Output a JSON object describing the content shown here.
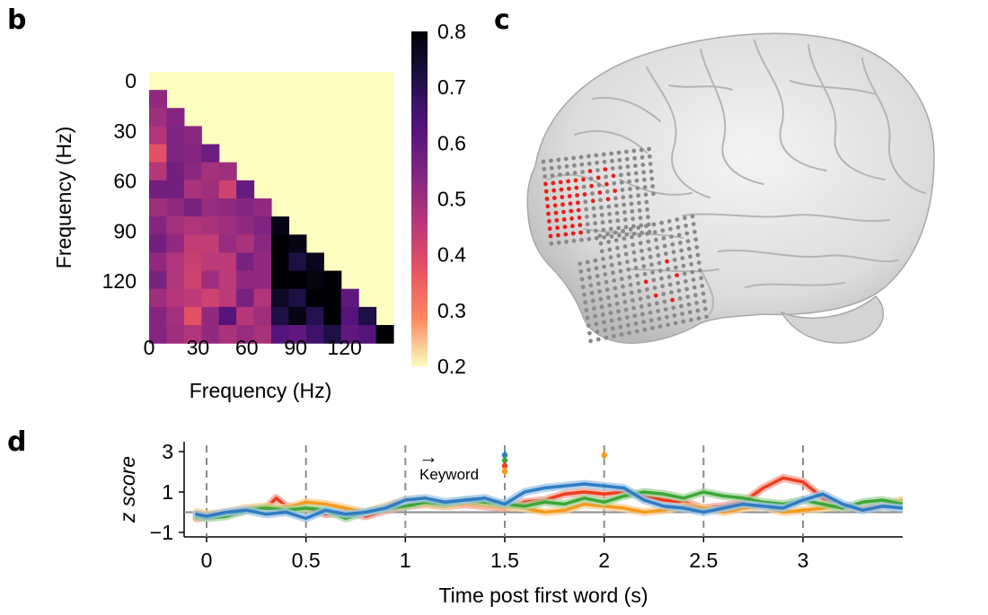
{
  "panels": {
    "b": {
      "letter": "b"
    },
    "c": {
      "letter": "c"
    },
    "d": {
      "letter": "d"
    }
  },
  "chart_data": [
    {
      "panel": "b",
      "type": "heatmap",
      "title": "",
      "xlabel": "Frequency (Hz)",
      "ylabel": "Frequency (Hz)",
      "x_ticks": [
        "0",
        "30",
        "60",
        "90",
        "120"
      ],
      "y_ticks": [
        "0",
        "30",
        "60",
        "90",
        "120"
      ],
      "xlim": [
        0,
        150
      ],
      "ylim": [
        0,
        150
      ],
      "bin_hz": 10,
      "colorbar": {
        "ticks": [
          "0.8",
          "0.7",
          "0.6",
          "0.5",
          "0.4",
          "0.3",
          "0.2"
        ],
        "range": [
          0.2,
          0.8
        ],
        "colormap": "magma_r"
      },
      "values": [
        [
          0.52
        ],
        [
          0.5,
          0.54
        ],
        [
          0.47,
          0.55,
          0.53
        ],
        [
          0.38,
          0.55,
          0.54,
          0.58
        ],
        [
          0.46,
          0.57,
          0.53,
          0.49,
          0.5
        ],
        [
          0.57,
          0.57,
          0.48,
          0.5,
          0.42,
          0.59
        ],
        [
          0.5,
          0.52,
          0.56,
          0.51,
          0.52,
          0.54,
          0.52
        ],
        [
          0.54,
          0.49,
          0.47,
          0.48,
          0.5,
          0.52,
          0.55,
          0.78
        ],
        [
          0.57,
          0.52,
          0.44,
          0.44,
          0.51,
          0.48,
          0.53,
          0.8,
          0.78
        ],
        [
          0.52,
          0.47,
          0.43,
          0.45,
          0.45,
          0.56,
          0.52,
          0.8,
          0.72,
          0.77
        ],
        [
          0.56,
          0.47,
          0.42,
          0.5,
          0.45,
          0.52,
          0.52,
          0.82,
          0.8,
          0.78,
          0.82
        ],
        [
          0.5,
          0.46,
          0.45,
          0.42,
          0.45,
          0.56,
          0.47,
          0.76,
          0.72,
          0.8,
          0.82,
          0.6
        ],
        [
          0.54,
          0.49,
          0.38,
          0.52,
          0.62,
          0.46,
          0.5,
          0.72,
          0.78,
          0.7,
          0.82,
          0.62,
          0.72
        ],
        [
          0.54,
          0.5,
          0.47,
          0.52,
          0.48,
          0.51,
          0.48,
          0.62,
          0.6,
          0.66,
          0.72,
          0.6,
          0.62,
          0.8
        ]
      ],
      "above_diagonal_value": 0.2
    },
    {
      "panel": "c",
      "type": "electrode-map",
      "electrodes": "grey = recorded, red = selected"
    },
    {
      "panel": "d",
      "type": "line",
      "title": "",
      "xlabel": "Time post first word (s)",
      "ylabel": "z score",
      "x_ticks": [
        "0",
        "0.5",
        "1",
        "1.5",
        "2",
        "2.5",
        "3"
      ],
      "y_ticks": [
        "3",
        "1",
        "−1"
      ],
      "xlim": [
        -0.1,
        3.5
      ],
      "ylim": [
        -1,
        3
      ],
      "vlines": [
        0,
        0.5,
        1,
        1.5,
        2,
        2.5,
        3
      ],
      "baseline": 0,
      "annotation": {
        "text": "Keyword",
        "arrow": "→"
      },
      "series": [
        {
          "color": "#f03c1e",
          "band": "#f6a294",
          "x": [
            -0.05,
            0,
            0.1,
            0.2,
            0.3,
            0.35,
            0.4,
            0.5,
            0.6,
            0.7,
            0.8,
            0.9,
            1,
            1.1,
            1.2,
            1.3,
            1.4,
            1.5,
            1.6,
            1.7,
            1.8,
            1.9,
            2,
            2.1,
            2.2,
            2.3,
            2.4,
            2.5,
            2.6,
            2.7,
            2.8,
            2.9,
            3,
            3.1,
            3.2,
            3.3,
            3.4,
            3.5
          ],
          "y": [
            -0.3,
            -0.2,
            -0.1,
            0.1,
            0.2,
            0.7,
            0.3,
            0.2,
            -0.1,
            0.0,
            -0.2,
            0.1,
            0.3,
            0.4,
            0.3,
            0.4,
            0.3,
            0.2,
            0.5,
            0.6,
            0.9,
            1.0,
            0.9,
            1.0,
            0.8,
            0.6,
            0.5,
            0.2,
            0.3,
            0.5,
            1.2,
            1.7,
            1.5,
            0.7,
            0.3,
            0.2,
            0.3,
            0.4
          ]
        },
        {
          "color": "#f59a1b",
          "band": "#fbcf94",
          "x": [
            -0.05,
            0,
            0.1,
            0.2,
            0.3,
            0.4,
            0.5,
            0.6,
            0.7,
            0.8,
            0.9,
            1,
            1.1,
            1.2,
            1.3,
            1.4,
            1.5,
            1.6,
            1.7,
            1.8,
            1.9,
            2,
            2.1,
            2.2,
            2.3,
            2.4,
            2.5,
            2.6,
            2.7,
            2.8,
            2.9,
            3,
            3.1,
            3.2,
            3.3,
            3.4,
            3.5
          ],
          "y": [
            0.0,
            -0.1,
            0.0,
            0.2,
            0.3,
            0.2,
            0.5,
            0.4,
            0.2,
            0.0,
            0.3,
            0.6,
            0.4,
            0.3,
            0.5,
            0.4,
            0.3,
            0.2,
            0.0,
            0.1,
            0.4,
            0.3,
            0.2,
            0.0,
            0.1,
            0.3,
            0.2,
            0.0,
            0.2,
            0.3,
            0.0,
            0.1,
            0.2,
            0.3,
            0.2,
            0.4,
            0.6
          ]
        },
        {
          "color": "#3ea637",
          "band": "#a6d6a0",
          "x": [
            -0.05,
            0,
            0.1,
            0.2,
            0.3,
            0.4,
            0.5,
            0.6,
            0.7,
            0.8,
            0.9,
            1,
            1.1,
            1.2,
            1.3,
            1.4,
            1.5,
            1.6,
            1.7,
            1.8,
            1.9,
            2,
            2.1,
            2.2,
            2.3,
            2.4,
            2.5,
            2.6,
            2.7,
            2.8,
            2.9,
            3,
            3.1,
            3.2,
            3.3,
            3.4,
            3.5
          ],
          "y": [
            -0.2,
            -0.3,
            -0.2,
            0.1,
            0.2,
            0.1,
            0.2,
            0.1,
            -0.3,
            0.0,
            0.2,
            0.3,
            0.5,
            0.4,
            0.6,
            0.5,
            0.4,
            0.3,
            0.5,
            0.4,
            0.7,
            0.5,
            0.8,
            1.0,
            0.9,
            0.7,
            1.0,
            0.8,
            0.7,
            0.5,
            0.4,
            0.6,
            0.4,
            0.2,
            0.5,
            0.6,
            0.4
          ]
        },
        {
          "color": "#2f7cc3",
          "band": "#9dc3e6",
          "x": [
            -0.05,
            0,
            0.1,
            0.2,
            0.3,
            0.4,
            0.5,
            0.6,
            0.7,
            0.8,
            0.9,
            1,
            1.1,
            1.2,
            1.3,
            1.4,
            1.5,
            1.6,
            1.7,
            1.8,
            1.9,
            2,
            2.1,
            2.2,
            2.3,
            2.4,
            2.5,
            2.6,
            2.7,
            2.8,
            2.9,
            3,
            3.1,
            3.2,
            3.3,
            3.4,
            3.5
          ],
          "y": [
            -0.1,
            -0.2,
            0.0,
            0.1,
            -0.1,
            0.0,
            -0.3,
            0.1,
            -0.1,
            0.0,
            0.2,
            0.6,
            0.7,
            0.5,
            0.6,
            0.7,
            0.4,
            1.0,
            1.2,
            1.3,
            1.4,
            1.3,
            1.2,
            0.6,
            0.3,
            0.2,
            0.0,
            0.2,
            0.4,
            0.3,
            0.2,
            0.6,
            0.9,
            0.4,
            0.1,
            0.3,
            0.2
          ]
        }
      ],
      "markers": [
        {
          "x": 1.5,
          "colors": [
            "#2f7cc3",
            "#3ea637",
            "#f03c1e",
            "#f59a1b"
          ]
        },
        {
          "x": 2.0,
          "colors": [
            "#f59a1b"
          ]
        }
      ]
    }
  ]
}
